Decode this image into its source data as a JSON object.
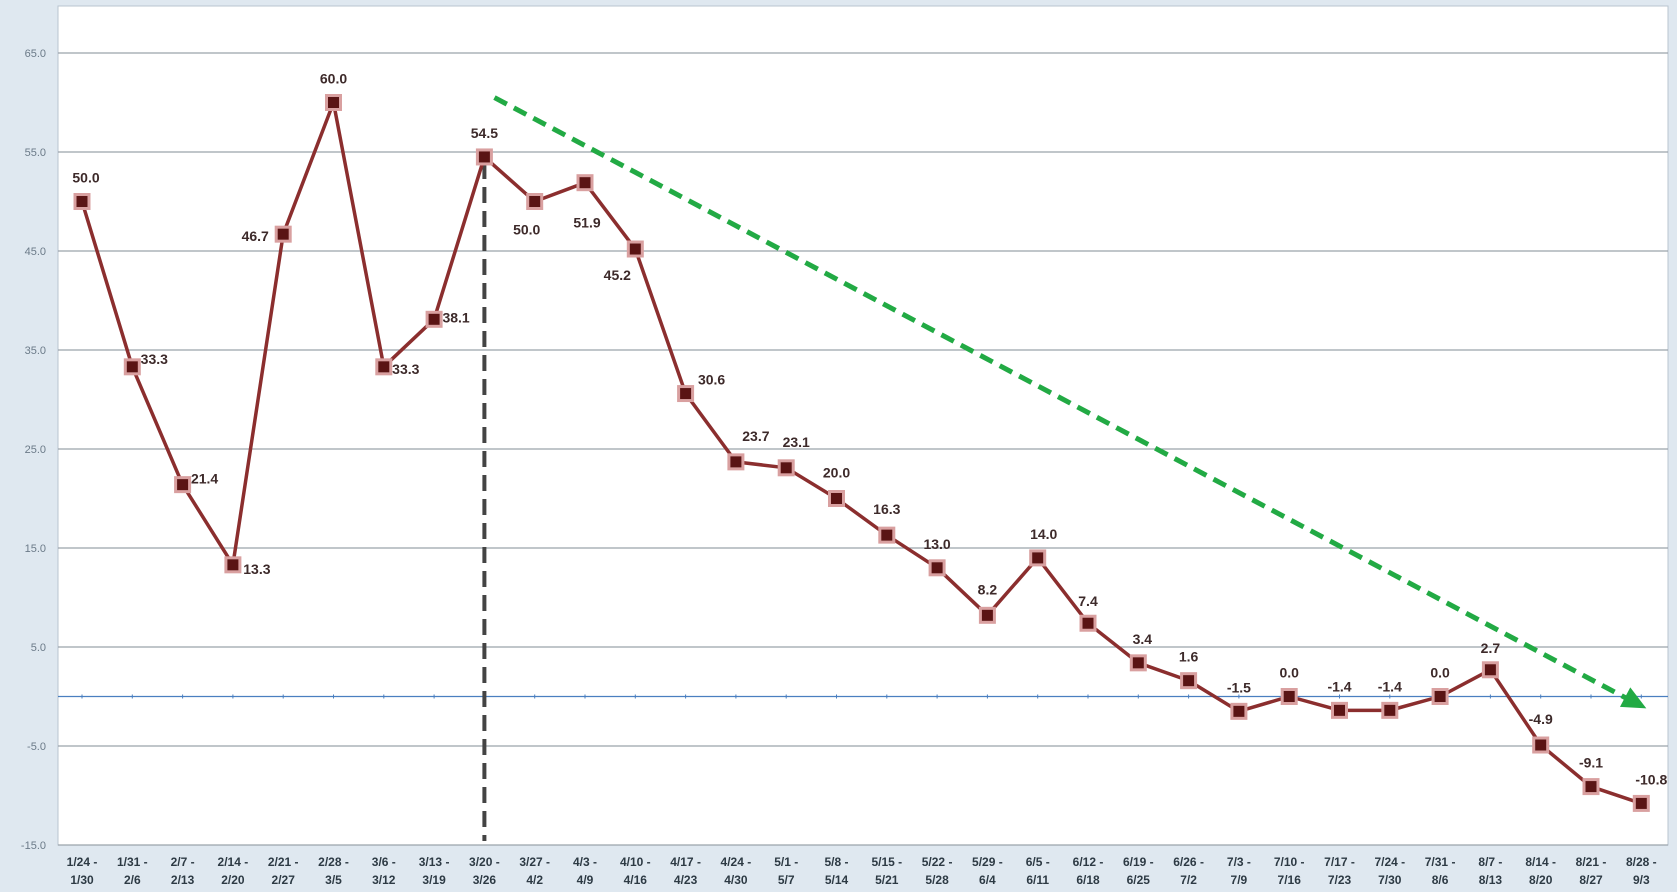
{
  "chart_data": {
    "type": "line",
    "title": "",
    "xlabel": "",
    "ylabel": "",
    "ylim": [
      -15,
      65
    ],
    "yticks": [
      65.0,
      55.0,
      45.0,
      35.0,
      25.0,
      15.0,
      5.0,
      -5.0,
      -15.0
    ],
    "ytick_labels": [
      "65.0",
      "55.0",
      "45.0",
      "35.0",
      "25.0",
      "15.0",
      "5.0",
      "-5.0",
      "-15.0"
    ],
    "grid": true,
    "categories": [
      [
        "1/24 -",
        "1/30"
      ],
      [
        "1/31 -",
        "2/6"
      ],
      [
        "2/7 -",
        "2/13"
      ],
      [
        "2/14 -",
        "2/20"
      ],
      [
        "2/21 -",
        "2/27"
      ],
      [
        "2/28 -",
        "3/5"
      ],
      [
        "3/6 -",
        "3/12"
      ],
      [
        "3/13 -",
        "3/19"
      ],
      [
        "3/20 -",
        "3/26"
      ],
      [
        "3/27 -",
        "4/2"
      ],
      [
        "4/3 -",
        "4/9"
      ],
      [
        "4/10 -",
        "4/16"
      ],
      [
        "4/17 -",
        "4/23"
      ],
      [
        "4/24 -",
        "4/30"
      ],
      [
        "5/1 -",
        "5/7"
      ],
      [
        "5/8 -",
        "5/14"
      ],
      [
        "5/15 -",
        "5/21"
      ],
      [
        "5/22 -",
        "5/28"
      ],
      [
        "5/29 -",
        "6/4"
      ],
      [
        "6/5 -",
        "6/11"
      ],
      [
        "6/12 -",
        "6/18"
      ],
      [
        "6/19 -",
        "6/25"
      ],
      [
        "6/26 -",
        "7/2"
      ],
      [
        "7/3 -",
        "7/9"
      ],
      [
        "7/10 -",
        "7/16"
      ],
      [
        "7/17 -",
        "7/23"
      ],
      [
        "7/24 -",
        "7/30"
      ],
      [
        "7/31 -",
        "8/6"
      ],
      [
        "8/7 -",
        "8/13"
      ],
      [
        "8/14 -",
        "8/20"
      ],
      [
        "8/21 -",
        "8/27"
      ],
      [
        "8/28 -",
        "9/3"
      ]
    ],
    "series": [
      {
        "values": [
          50.0,
          33.3,
          21.4,
          13.3,
          46.7,
          60.0,
          33.3,
          38.1,
          54.5,
          50.0,
          51.9,
          45.2,
          30.6,
          23.7,
          23.1,
          20.0,
          16.3,
          13.0,
          8.2,
          14.0,
          7.4,
          3.4,
          1.6,
          -1.5,
          0.0,
          -1.4,
          -1.4,
          0.0,
          2.7,
          -4.9,
          -9.1,
          -10.8
        ],
        "labels": [
          "50.0",
          "33.3",
          "21.4",
          "13.3",
          "46.7",
          "60.0",
          "33.3",
          "38.1",
          "54.5",
          "50.0",
          "51.9",
          "45.2",
          "30.6",
          "23.7",
          "23.1",
          "20.0",
          "16.3",
          "13.0",
          "8.2",
          "14.0",
          "7.4",
          "3.4",
          "1.6",
          "-1.5",
          "0.0",
          "-1.4",
          "-1.4",
          "0.0",
          "2.7",
          "-4.9",
          "-9.1",
          "-10.8"
        ],
        "color": "#8b2e2e",
        "marker_fill": "#5a1414",
        "marker_edge": "#d9a0a0"
      }
    ],
    "annotations": {
      "vertical_marker_category_index": 8,
      "vertical_marker_color": "#444444",
      "trend_arrow_color": "#22aa44",
      "trend_arrow_from": {
        "category_index": 8.2,
        "value": 60.5
      },
      "trend_arrow_to": {
        "category_index": 31.1,
        "value": -1.2
      },
      "zero_line_color": "#4a7fc0"
    }
  }
}
